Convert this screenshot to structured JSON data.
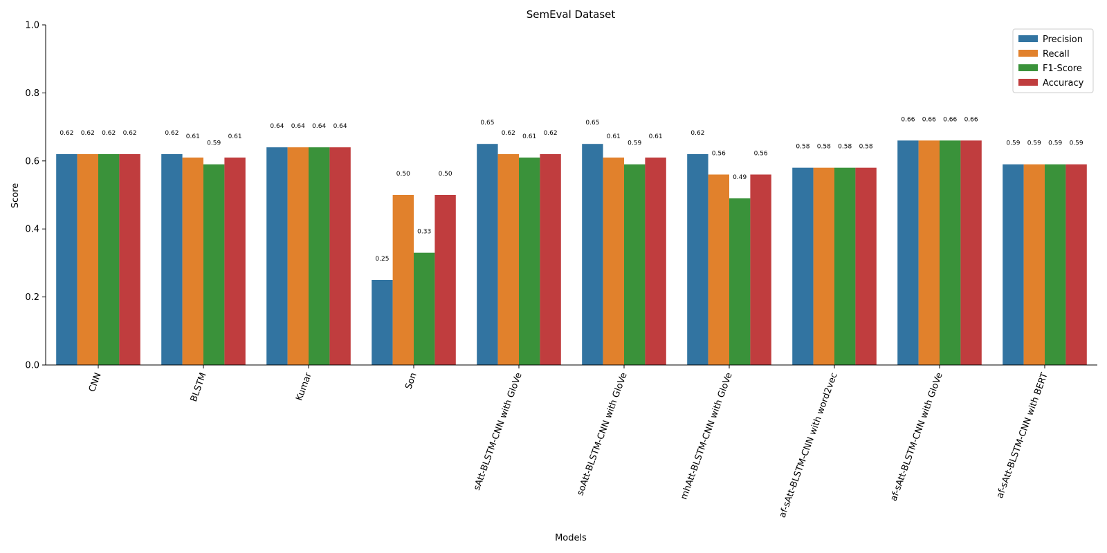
{
  "chart_data": {
    "type": "bar",
    "title": "SemEval Dataset",
    "xlabel": "Models",
    "ylabel": "Score",
    "ylim": [
      0,
      1.0
    ],
    "yticks": [
      "0.0",
      "0.2",
      "0.4",
      "0.6",
      "0.8",
      "1.0"
    ],
    "grid": false,
    "legend_position": "top-right",
    "categories": [
      "CNN",
      "BLSTM",
      "Kumar",
      "Son",
      "sAtt-BLSTM-CNN with GloVe",
      "soAtt-BLSTM-CNN with GloVe",
      "mhAtt-BLSTM-CNN with GloVe",
      "af-sAtt-BLSTM-CNN with word2vec",
      "af-sAtt-BLSTM-CNN with GloVe",
      "af-sAtt-BLSTM-CNN with BERT"
    ],
    "series": [
      {
        "name": "Precision",
        "color": "#3274a1",
        "values": [
          0.62,
          0.62,
          0.64,
          0.25,
          0.65,
          0.65,
          0.62,
          0.58,
          0.66,
          0.59
        ],
        "labels": [
          "0.62",
          "0.62",
          "0.64",
          "0.25",
          "0.65",
          "0.65",
          "0.62",
          "0.58",
          "0.66",
          "0.59"
        ]
      },
      {
        "name": "Recall",
        "color": "#e1812c",
        "values": [
          0.62,
          0.61,
          0.64,
          0.5,
          0.62,
          0.61,
          0.56,
          0.58,
          0.66,
          0.59
        ],
        "labels": [
          "0.62",
          "0.61",
          "0.64",
          "0.50",
          "0.62",
          "0.61",
          "0.56",
          "0.58",
          "0.66",
          "0.59"
        ]
      },
      {
        "name": "F1-Score",
        "color": "#3a923a",
        "values": [
          0.62,
          0.59,
          0.64,
          0.33,
          0.61,
          0.59,
          0.49,
          0.58,
          0.66,
          0.59
        ],
        "labels": [
          "0.62",
          "0.59",
          "0.64",
          "0.33",
          "0.61",
          "0.59",
          "0.49",
          "0.58",
          "0.66",
          "0.59"
        ]
      },
      {
        "name": "Accuracy",
        "color": "#c03d3e",
        "values": [
          0.62,
          0.61,
          0.64,
          0.5,
          0.62,
          0.61,
          0.56,
          0.58,
          0.66,
          0.59
        ],
        "labels": [
          "0.62",
          "0.61",
          "0.64",
          "0.50",
          "0.62",
          "0.61",
          "0.56",
          "0.58",
          "0.66",
          "0.59"
        ]
      }
    ]
  }
}
